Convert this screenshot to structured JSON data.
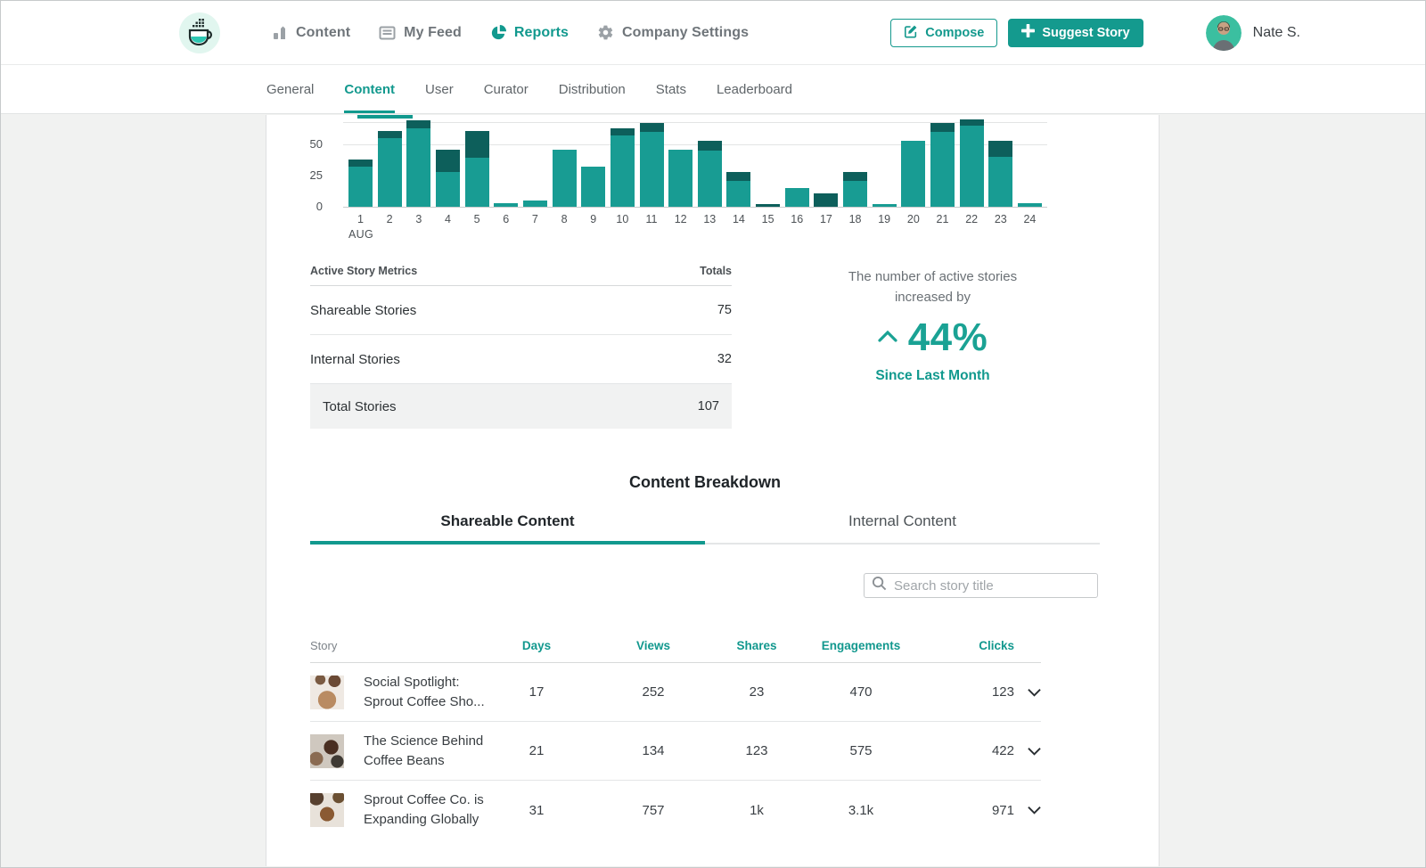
{
  "topbar": {
    "nav": [
      {
        "label": "Content"
      },
      {
        "label": "My Feed"
      },
      {
        "label": "Reports",
        "active": true
      },
      {
        "label": "Company Settings"
      }
    ],
    "compose_label": "Compose",
    "suggest_label": "Suggest Story",
    "user_name": "Nate S."
  },
  "subnav": {
    "items": [
      "General",
      "Content",
      "User",
      "Curator",
      "Distribution",
      "Stats",
      "Leaderboard"
    ],
    "active": "Content"
  },
  "chart_data": {
    "type": "bar",
    "stacked": true,
    "categories": [
      1,
      2,
      3,
      4,
      5,
      6,
      7,
      8,
      9,
      10,
      11,
      12,
      13,
      14,
      15,
      16,
      17,
      18,
      19,
      20,
      21,
      22,
      23,
      24
    ],
    "series": [
      {
        "name": "teal",
        "color": "#189c93",
        "values": [
          32,
          55,
          63,
          28,
          39,
          3,
          5,
          46,
          32,
          57,
          60,
          46,
          45,
          21,
          0,
          15,
          0,
          21,
          2,
          53,
          60,
          65,
          40,
          3
        ]
      },
      {
        "name": "dark-teal",
        "color": "#0d5f5b",
        "values": [
          6,
          6,
          6,
          18,
          22,
          0,
          0,
          0,
          0,
          6,
          7,
          0,
          8,
          7,
          2,
          0,
          11,
          7,
          0,
          0,
          7,
          5,
          13,
          0
        ]
      }
    ],
    "x_axis_label": "AUG",
    "yticks": [
      "50",
      "25",
      "0"
    ],
    "ylim": [
      0,
      75
    ],
    "grid": true
  },
  "metrics": {
    "header": {
      "title": "Active Story Metrics",
      "totals": "Totals"
    },
    "rows": [
      {
        "label": "Shareable Stories",
        "value": "75"
      },
      {
        "label": "Internal Stories",
        "value": "32"
      },
      {
        "label": "Total Stories",
        "value": "107"
      }
    ]
  },
  "stat": {
    "line1": "The number of active stories",
    "line2": "increased by",
    "value": "44%",
    "caption": "Since Last Month"
  },
  "breakdown": {
    "title": "Content Breakdown",
    "tabs": [
      {
        "label": "Shareable Content",
        "active": true
      },
      {
        "label": "Internal Content",
        "active": false
      }
    ],
    "search_placeholder": "Search story title",
    "columns": [
      "Story",
      "Days",
      "Views",
      "Shares",
      "Engagements",
      "Clicks"
    ],
    "rows": [
      {
        "title_line1": "Social Spotlight:",
        "title_line2": "Sprout Coffee Sho...",
        "days": "17",
        "views": "252",
        "shares": "23",
        "engagements": "470",
        "clicks": "123"
      },
      {
        "title_line1": "The Science Behind",
        "title_line2": "Coffee Beans",
        "days": "21",
        "views": "134",
        "shares": "123",
        "engagements": "575",
        "clicks": "422"
      },
      {
        "title_line1": "Sprout Coffee Co. is",
        "title_line2": "Expanding Globally",
        "days": "31",
        "views": "757",
        "shares": "1k",
        "engagements": "3.1k",
        "clicks": "971"
      }
    ]
  },
  "colors": {
    "accent_teal": "#12998e",
    "bar_light": "#189c93",
    "bar_dark": "#0d5f5b",
    "logo_bg": "#e1f6ef",
    "highlight_row": "#f1f2f2"
  }
}
